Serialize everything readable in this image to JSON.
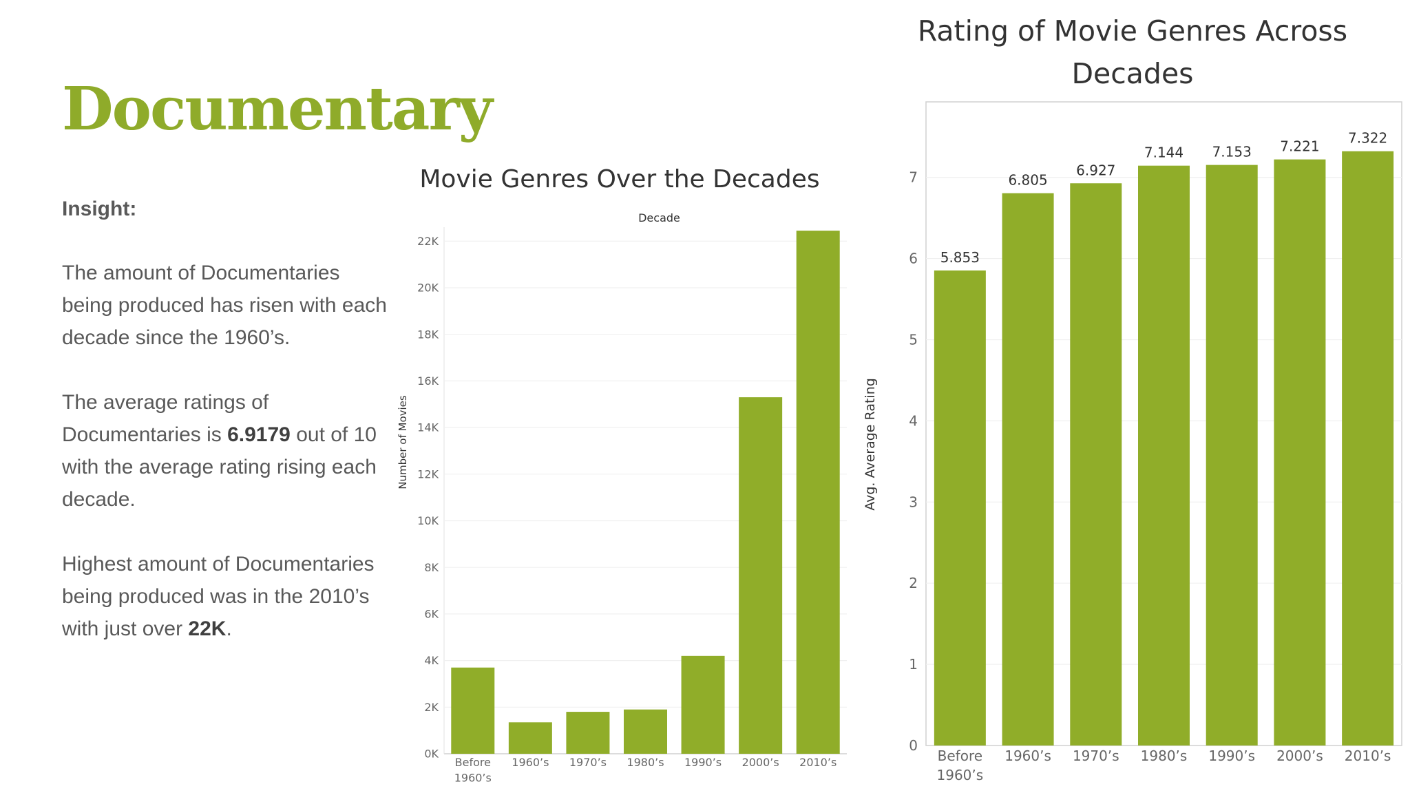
{
  "page": {
    "title": "Documentary",
    "insight": {
      "heading": "Insight:",
      "p1": "The amount of Documentaries being produced has risen with each decade since the 1960’s.",
      "p2_before": "The average ratings of Documentaries is ",
      "p2_bold": "6.9179",
      "p2_after": " out of 10 with the average rating rising each decade.",
      "p3_before": "Highest amount of Documentaries being produced was in the 2010’s with just over ",
      "p3_bold": "22K",
      "p3_after": "."
    }
  },
  "colors": {
    "bar": "#90ad29",
    "accent_title": "#8fab2a"
  },
  "chart_data": [
    {
      "type": "bar",
      "title": "Movie Genres Over the Decades",
      "xlabel": "Decade",
      "ylabel": "Number of Movies",
      "categories": [
        "Before 1960's",
        "1960's",
        "1970's",
        "1980's",
        "1990's",
        "2000's",
        "2010's"
      ],
      "values": [
        3700,
        1350,
        1800,
        1900,
        4200,
        15300,
        22450
      ],
      "yticks": [
        0,
        2000,
        4000,
        6000,
        8000,
        10000,
        12000,
        14000,
        16000,
        18000,
        20000,
        22000
      ],
      "ytick_labels": [
        "0K",
        "2K",
        "4K",
        "6K",
        "8K",
        "10K",
        "12K",
        "14K",
        "16K",
        "18K",
        "20K",
        "22K"
      ],
      "ylim": [
        0,
        22600
      ],
      "grid": true
    },
    {
      "type": "bar",
      "title": "Rating of Movie Genres Across Decades",
      "ylabel": "Avg. Average Rating",
      "categories": [
        "Before 1960's",
        "1960's",
        "1970's",
        "1980's",
        "1990's",
        "2000's",
        "2010's"
      ],
      "values": [
        5.853,
        6.805,
        6.927,
        7.144,
        7.153,
        7.221,
        7.322
      ],
      "data_labels": [
        "5.853",
        "6.805",
        "6.927",
        "7.144",
        "7.153",
        "7.221",
        "7.322"
      ],
      "yticks": [
        0,
        1,
        2,
        3,
        4,
        5,
        6,
        7
      ],
      "ylim": [
        0,
        7.93
      ],
      "grid": true
    }
  ]
}
